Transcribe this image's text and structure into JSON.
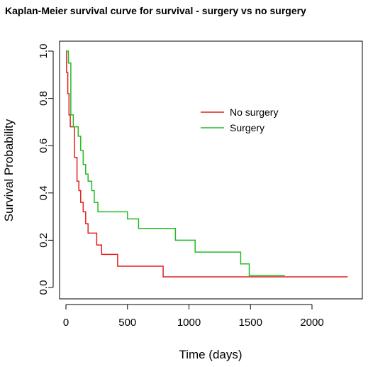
{
  "chart_data": {
    "type": "line",
    "title": "Kaplan-Meier survival curve for survival - surgery vs no surgery",
    "xlabel": "Time (days)",
    "ylabel": "Survival Probability",
    "xlim": [
      0,
      2300
    ],
    "ylim": [
      0,
      1
    ],
    "x_ticks": [
      "0",
      "500",
      "1000",
      "1500",
      "2000"
    ],
    "y_ticks": [
      "0.0",
      "0.2",
      "0.4",
      "0.6",
      "0.8",
      "1.0"
    ],
    "grid": false,
    "legend_position": "upper-middle",
    "series": [
      {
        "name": "No surgery",
        "color": "#e02020",
        "step_points": [
          [
            0,
            1.0
          ],
          [
            5,
            0.91
          ],
          [
            15,
            0.82
          ],
          [
            25,
            0.73
          ],
          [
            35,
            0.68
          ],
          [
            70,
            0.55
          ],
          [
            90,
            0.45
          ],
          [
            105,
            0.41
          ],
          [
            120,
            0.36
          ],
          [
            140,
            0.32
          ],
          [
            160,
            0.27
          ],
          [
            180,
            0.23
          ],
          [
            250,
            0.18
          ],
          [
            290,
            0.14
          ],
          [
            420,
            0.09
          ],
          [
            790,
            0.045
          ],
          [
            2290,
            0.045
          ]
        ]
      },
      {
        "name": "Surgery",
        "color": "#22bb22",
        "step_points": [
          [
            0,
            1.0
          ],
          [
            20,
            0.95
          ],
          [
            40,
            0.73
          ],
          [
            60,
            0.68
          ],
          [
            100,
            0.64
          ],
          [
            120,
            0.58
          ],
          [
            140,
            0.52
          ],
          [
            160,
            0.48
          ],
          [
            180,
            0.45
          ],
          [
            210,
            0.41
          ],
          [
            230,
            0.36
          ],
          [
            260,
            0.32
          ],
          [
            500,
            0.29
          ],
          [
            590,
            0.25
          ],
          [
            890,
            0.2
          ],
          [
            1050,
            0.15
          ],
          [
            1420,
            0.1
          ],
          [
            1490,
            0.05
          ],
          [
            1780,
            0.05
          ]
        ]
      }
    ]
  }
}
